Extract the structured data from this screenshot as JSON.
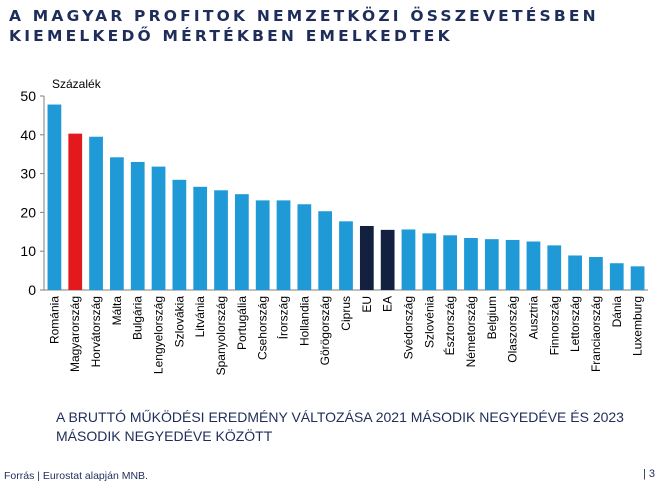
{
  "title_lines": [
    "A MAGYAR PROFITOK NEMZETKÖZI ÖSSZEVETÉSBEN",
    "KIEMELKEDŐ MÉRTÉKBEN EMELKEDTEK"
  ],
  "subtitle_lines": [
    "A BRUTTÓ MŰKÖDÉSI EREDMÉNY VÁLTOZÁSA 2021 MÁSODIK NEGYEDÉVE ÉS 2023",
    "MÁSODIK NEGYEDÉVE KÖZÖTT"
  ],
  "source": "Forrás | Eurostat alapján MNB.",
  "page_number": "| 3",
  "colors": {
    "default": "#1f9ad6",
    "highlight": "#e3191d",
    "aggregate": "#13203f",
    "title": "#1f2d5a"
  },
  "chart_data": {
    "type": "bar",
    "ylabel": "Százalék",
    "ylim": [
      0,
      50
    ],
    "yticks": [
      0,
      10,
      20,
      30,
      40,
      50
    ],
    "grid": false,
    "legend": "none",
    "categories": [
      "Románia",
      "Magyarország",
      "Horvátország",
      "Málta",
      "Bulgária",
      "Lengyelország",
      "Szlovákia",
      "Litvánia",
      "Spanyolország",
      "Portugália",
      "Csehország",
      "Írország",
      "Hollandia",
      "Görögország",
      "Ciprus",
      "EU",
      "EA",
      "Svédország",
      "Szlovénia",
      "Észtország",
      "Németország",
      "Belgium",
      "Olaszország",
      "Ausztria",
      "Finnország",
      "Lettország",
      "Franciaország",
      "Dánia",
      "Luxemburg"
    ],
    "values": [
      47.8,
      40.3,
      39.5,
      34.2,
      33.0,
      31.8,
      28.4,
      26.6,
      25.7,
      24.7,
      23.1,
      23.1,
      22.1,
      20.3,
      17.7,
      16.5,
      15.5,
      15.6,
      14.6,
      14.1,
      13.4,
      13.1,
      12.9,
      12.5,
      11.5,
      8.9,
      8.5,
      6.9,
      6.1
    ],
    "highlight": {
      "Magyarország": "highlight",
      "EU": "aggregate",
      "EA": "aggregate"
    }
  }
}
